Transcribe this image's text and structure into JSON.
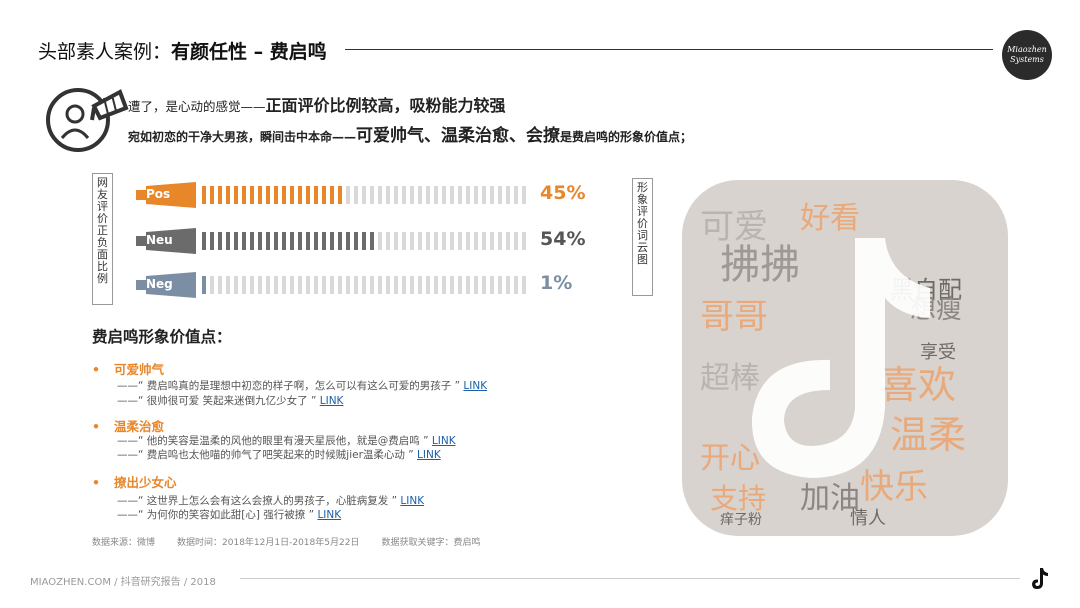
{
  "header": {
    "title_prefix": "头部素人案例：",
    "title_bold": "有颜任性 – 费启鸣",
    "brand_line1": "Miaozhen",
    "brand_line2": "Systems"
  },
  "intro": {
    "line1_small": "遭了，是心动的感觉——",
    "line1_big": "正面评价比例较高，吸粉能力较强",
    "line2_small": "宛如初恋的干净大男孩，瞬间击中本命——",
    "line2_big": "可爱帅气、温柔治愈、会撩",
    "line2_end": "是费启鸣的形象价值点；"
  },
  "sentiment": {
    "side_label": "网友评价正负面比例",
    "rows": [
      {
        "label": "Pos",
        "pct_text": "45%",
        "pct": 45,
        "color": "#e8862a",
        "text_color": "#e8862a"
      },
      {
        "label": "Neu",
        "pct_text": "54%",
        "pct": 54,
        "color": "#6b6b6b",
        "text_color": "#555555"
      },
      {
        "label": "Neg",
        "pct_text": "1%",
        "pct": 1,
        "color": "#7b8ea3",
        "text_color": "#7b8ea3"
      }
    ],
    "empty_color": "#d9d9d9"
  },
  "cloud": {
    "side_label": "形象评价词云图"
  },
  "traits": {
    "title": "费启鸣形象价值点：",
    "bullet": "•",
    "groups": [
      {
        "name": "可爱帅气",
        "quotes": [
          {
            "text": "——“ 费启鸣真的是理想中初恋的样子啊，怎么可以有这么可爱的男孩子 ”",
            "link": "LINK"
          },
          {
            "text": "——“ 很帅很可爱 笑起来迷倒九亿少女了 ”",
            "link": "LINK"
          }
        ]
      },
      {
        "name": "温柔治愈",
        "quotes": [
          {
            "text": "——“ 他的笑容是温柔的风他的眼里有漫天星辰他，就是@费启鸣 ”",
            "link": "LINK"
          },
          {
            "text": "——“ 费启鸣也太他喵的帅气了吧笑起来的时候贼jier温柔心动 ”",
            "link": "LINK"
          }
        ]
      },
      {
        "name": "撩出少女心",
        "quotes": [
          {
            "text": "——“ 这世界上怎么会有这么会撩人的男孩子，心脏病复发 ”",
            "link": "LINK"
          },
          {
            "text": "——“ 为何你的笑容如此甜[心] 强行被撩 ”",
            "link": "LINK"
          }
        ]
      }
    ]
  },
  "source": {
    "from": "数据来源：微博",
    "period": "数据时间：2018年12月1日-2018年5月22日",
    "keyword": "数据获取关键字：费启鸣"
  },
  "footer": {
    "text": "MIAOZHEN.COM / 抖音研究报告 / 2018"
  }
}
